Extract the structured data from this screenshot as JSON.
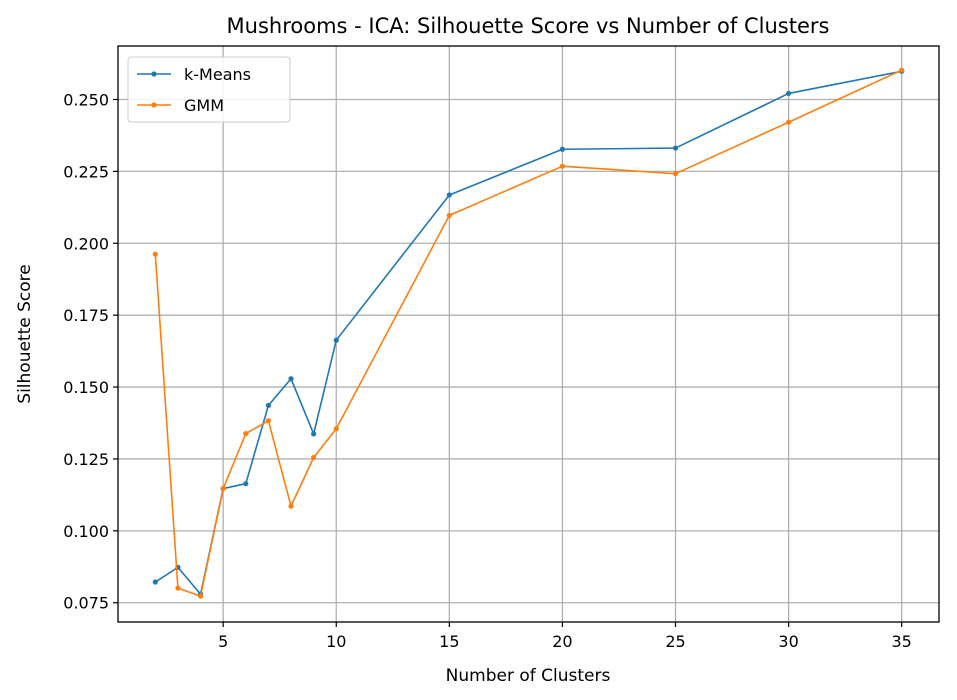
{
  "chart_data": {
    "type": "line",
    "title": "Mushrooms - ICA: Silhouette Score vs Number of Clusters",
    "xlabel": "Number of Clusters",
    "ylabel": "Silhouette Score",
    "xlim": [
      0.35,
      36.65
    ],
    "ylim": [
      0.0683,
      0.2686
    ],
    "xticks": [
      5,
      10,
      15,
      20,
      25,
      30,
      35
    ],
    "xtick_labels": [
      "5",
      "10",
      "15",
      "20",
      "25",
      "30",
      "35"
    ],
    "yticks": [
      0.075,
      0.1,
      0.125,
      0.15,
      0.175,
      0.2,
      0.225,
      0.25
    ],
    "ytick_labels": [
      "0.075",
      "0.100",
      "0.125",
      "0.150",
      "0.175",
      "0.200",
      "0.225",
      "0.250"
    ],
    "grid": true,
    "legend_position": "top-left",
    "x": [
      2,
      3,
      4,
      5,
      6,
      7,
      8,
      9,
      10,
      15,
      20,
      25,
      30,
      35
    ],
    "series": [
      {
        "name": "k-Means",
        "color": "#1f77b4",
        "values": [
          0.0822,
          0.0873,
          0.078,
          0.1147,
          0.1164,
          0.1436,
          0.1529,
          0.1337,
          0.1663,
          0.2168,
          0.2327,
          0.2331,
          0.2521,
          0.2598
        ]
      },
      {
        "name": "GMM",
        "color": "#ff7f0e",
        "values": [
          0.1962,
          0.0801,
          0.0773,
          0.1147,
          0.1338,
          0.1383,
          0.1086,
          0.1255,
          0.1355,
          0.2097,
          0.2268,
          0.2242,
          0.2421,
          0.2602
        ]
      }
    ]
  }
}
